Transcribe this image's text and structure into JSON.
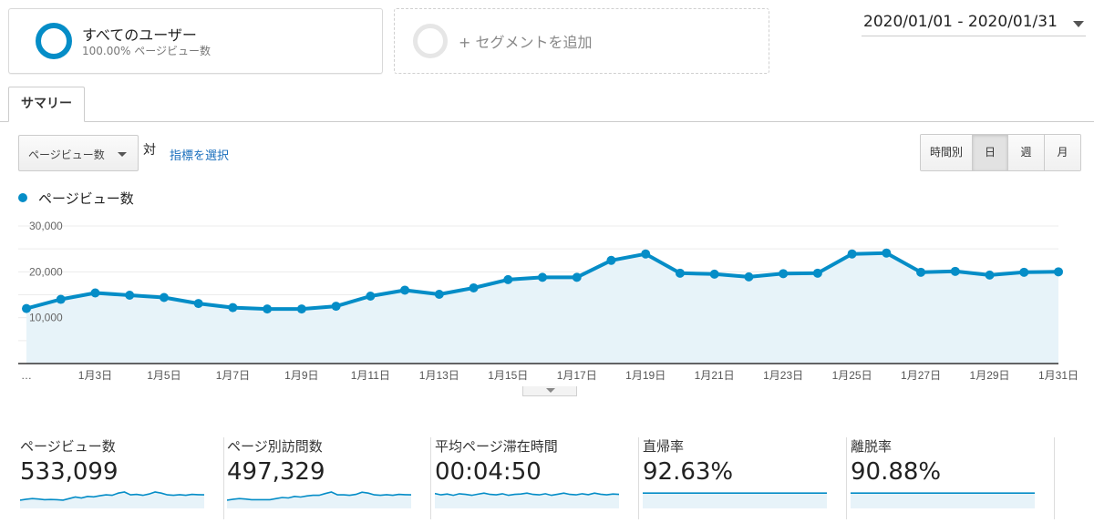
{
  "segments": {
    "primary": {
      "title": "すべてのユーザー",
      "subtitle": "100.00% ページビュー数",
      "color": "#058dc7"
    },
    "add_label": "+ セグメントを追加"
  },
  "date_range": "2020/01/01 - 2020/01/31",
  "tabs": [
    {
      "label": "サマリー",
      "active": true
    }
  ],
  "metric_selector": {
    "selected": "ページビュー数",
    "vs_label": "対",
    "select_link": "指標を選択"
  },
  "granularity": [
    {
      "label": "時間別",
      "active": false
    },
    {
      "label": "日",
      "active": true
    },
    {
      "label": "週",
      "active": false
    },
    {
      "label": "月",
      "active": false
    }
  ],
  "legend": {
    "label": "ページビュー数",
    "color": "#058dc7"
  },
  "chart_data": {
    "type": "area",
    "series": [
      {
        "name": "ページビュー数",
        "values": [
          12000,
          14000,
          15400,
          14900,
          14400,
          13100,
          12200,
          11900,
          11900,
          12500,
          14700,
          16000,
          15100,
          16500,
          18300,
          18800,
          18800,
          22500,
          23900,
          19700,
          19500,
          18900,
          19600,
          19700,
          23900,
          24100,
          19900,
          20100,
          19300,
          19900,
          20000
        ]
      }
    ],
    "ylim": [
      0,
      30000
    ],
    "yticks": [
      10000,
      20000,
      30000
    ],
    "ytick_labels": [
      "10,000",
      "20,000",
      "30,000"
    ],
    "x_labels": [
      "…",
      "1月3日",
      "1月5日",
      "1月7日",
      "1月9日",
      "1月11日",
      "1月13日",
      "1月15日",
      "1月17日",
      "1月19日",
      "1月21日",
      "1月23日",
      "1月25日",
      "1月27日",
      "1月29日",
      "1月31日"
    ],
    "grid": true
  },
  "metrics": [
    {
      "name": "ページビュー数",
      "value": "533,099",
      "trend": [
        0.62,
        0.58,
        0.55,
        0.57,
        0.6,
        0.59,
        0.6,
        0.62,
        0.55,
        0.48,
        0.52,
        0.45,
        0.47,
        0.42,
        0.38,
        0.4,
        0.3,
        0.25,
        0.38,
        0.36,
        0.4,
        0.34,
        0.25,
        0.3,
        0.38,
        0.4,
        0.37,
        0.4,
        0.36,
        0.37,
        0.38
      ]
    },
    {
      "name": "ページ別訪問数",
      "value": "497,329",
      "trend": [
        0.62,
        0.58,
        0.55,
        0.57,
        0.6,
        0.6,
        0.6,
        0.6,
        0.55,
        0.5,
        0.52,
        0.45,
        0.48,
        0.43,
        0.4,
        0.4,
        0.32,
        0.25,
        0.38,
        0.38,
        0.4,
        0.36,
        0.26,
        0.3,
        0.38,
        0.4,
        0.37,
        0.4,
        0.36,
        0.37,
        0.38
      ]
    },
    {
      "name": "平均ページ滞在時間",
      "value": "00:04:50",
      "trend": [
        0.32,
        0.38,
        0.34,
        0.4,
        0.33,
        0.36,
        0.4,
        0.35,
        0.3,
        0.36,
        0.38,
        0.33,
        0.4,
        0.36,
        0.34,
        0.3,
        0.36,
        0.38,
        0.33,
        0.4,
        0.35,
        0.3,
        0.36,
        0.38,
        0.33,
        0.37,
        0.3,
        0.35,
        0.38,
        0.34,
        0.36
      ]
    },
    {
      "name": "直帰率",
      "value": "92.63%",
      "trend": [
        0.3,
        0.3,
        0.3,
        0.3,
        0.3,
        0.3,
        0.3,
        0.3,
        0.3,
        0.3,
        0.3,
        0.3,
        0.3,
        0.3,
        0.3,
        0.3,
        0.3,
        0.3,
        0.3,
        0.3,
        0.3,
        0.3,
        0.3,
        0.3,
        0.3,
        0.3,
        0.3,
        0.3,
        0.3,
        0.3,
        0.3
      ]
    },
    {
      "name": "離脱率",
      "value": "90.88%",
      "trend": [
        0.3,
        0.3,
        0.3,
        0.3,
        0.3,
        0.3,
        0.3,
        0.3,
        0.3,
        0.3,
        0.3,
        0.3,
        0.3,
        0.3,
        0.3,
        0.3,
        0.3,
        0.3,
        0.3,
        0.3,
        0.3,
        0.3,
        0.3,
        0.3,
        0.3,
        0.3,
        0.3,
        0.3,
        0.3,
        0.3,
        0.3
      ]
    }
  ]
}
